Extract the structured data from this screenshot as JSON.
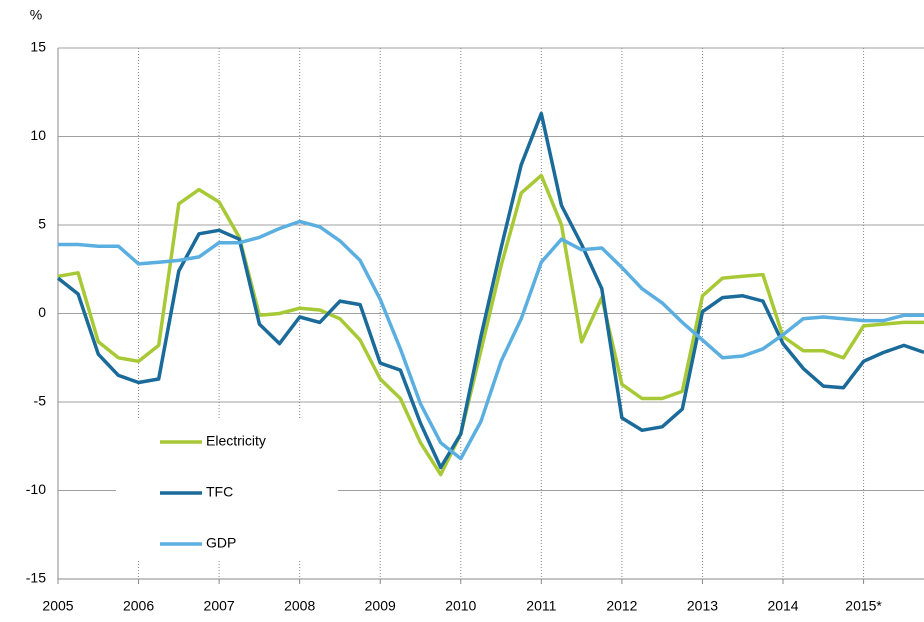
{
  "chart_data": {
    "type": "line",
    "y_label": "%",
    "x": [
      2005,
      2005.25,
      2005.5,
      2005.75,
      2006,
      2006.25,
      2006.5,
      2006.75,
      2007,
      2007.25,
      2007.5,
      2007.75,
      2008,
      2008.25,
      2008.5,
      2008.75,
      2009,
      2009.25,
      2009.5,
      2009.75,
      2010,
      2010.25,
      2010.5,
      2010.75,
      2011,
      2011.25,
      2011.5,
      2011.75,
      2012,
      2012.25,
      2012.5,
      2012.75,
      2013,
      2013.25,
      2013.5,
      2013.75,
      2014,
      2014.25,
      2014.5,
      2014.75,
      2015,
      2015.25,
      2015.5,
      2015.75
    ],
    "series": [
      {
        "name": "Electricity",
        "color": "#a8c936",
        "values": [
          2.1,
          2.3,
          -1.6,
          -2.5,
          -2.7,
          -1.8,
          6.2,
          7.0,
          6.3,
          4.3,
          -0.1,
          0.0,
          0.3,
          0.2,
          -0.3,
          -1.5,
          -3.7,
          -4.8,
          -7.3,
          -9.1,
          -6.8,
          -2.1,
          2.7,
          6.8,
          7.8,
          5.0,
          -1.6,
          0.9,
          -4.0,
          -4.8,
          -4.8,
          -4.4,
          1.0,
          2.0,
          2.1,
          2.2,
          -1.3,
          -2.1,
          -2.1,
          -2.5,
          -0.7,
          -0.6,
          -0.5,
          -0.5
        ]
      },
      {
        "name": "TFC",
        "color": "#1a6a9a",
        "values": [
          2.0,
          1.1,
          -2.3,
          -3.5,
          -3.9,
          -3.7,
          2.4,
          4.5,
          4.7,
          4.2,
          -0.6,
          -1.7,
          -0.2,
          -0.5,
          0.7,
          0.5,
          -2.8,
          -3.2,
          -6.2,
          -8.7,
          -6.8,
          -1.3,
          3.7,
          8.4,
          11.3,
          6.1,
          3.9,
          1.4,
          -5.9,
          -6.6,
          -6.4,
          -5.4,
          0.1,
          0.9,
          1.0,
          0.7,
          -1.7,
          -3.1,
          -4.1,
          -4.2,
          -2.7,
          -2.2,
          -1.8,
          -2.2
        ]
      },
      {
        "name": "GDP",
        "color": "#5aafe0",
        "values": [
          3.9,
          3.9,
          3.8,
          3.8,
          2.8,
          2.9,
          3.0,
          3.2,
          4.0,
          4.0,
          4.3,
          4.8,
          5.2,
          4.9,
          4.1,
          3.0,
          0.8,
          -2.0,
          -5.1,
          -7.3,
          -8.2,
          -6.1,
          -2.7,
          -0.3,
          2.9,
          4.2,
          3.6,
          3.7,
          2.6,
          1.4,
          0.6,
          -0.5,
          -1.5,
          -2.5,
          -2.4,
          -2.0,
          -1.2,
          -0.3,
          -0.2,
          -0.3,
          -0.4,
          -0.4,
          -0.1,
          -0.1
        ]
      }
    ],
    "xlim": [
      2005,
      2015.75
    ],
    "xticks": [
      2005,
      2006,
      2007,
      2008,
      2009,
      2010,
      2011,
      2012,
      2013,
      2014,
      {
        "value": 2015,
        "label": "2015*"
      }
    ],
    "ylim": [
      -15,
      15
    ],
    "yticks": [
      -15,
      -10,
      -5,
      0,
      5,
      10,
      15
    ],
    "grid": true,
    "legend": "lower left"
  }
}
